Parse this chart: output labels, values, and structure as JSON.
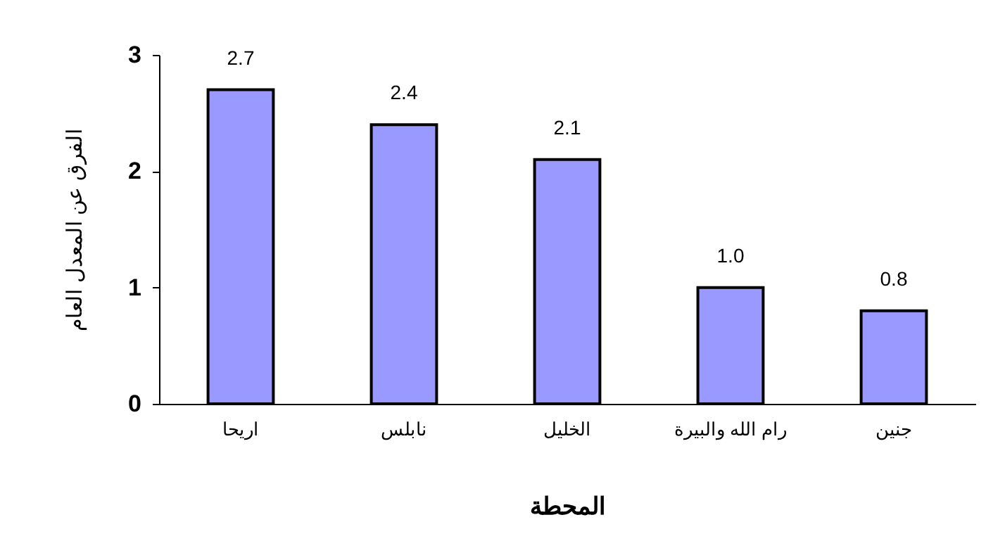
{
  "chart_data": {
    "type": "bar",
    "xlabel": "المحطة",
    "ylabel": "الفرق عن المعدل العام",
    "categories": [
      "اريحا",
      "نابلس",
      "الخليل",
      "رام الله والبيرة",
      "جنين"
    ],
    "values": [
      2.7,
      2.4,
      2.1,
      1.0,
      0.8
    ],
    "value_labels": [
      "2.7",
      "2.4",
      "2.1",
      "1.0",
      "0.8"
    ],
    "color": "#9999ff",
    "ylim": [
      0,
      3
    ],
    "yticks": [
      0,
      1,
      2,
      3
    ],
    "grid": false
  }
}
